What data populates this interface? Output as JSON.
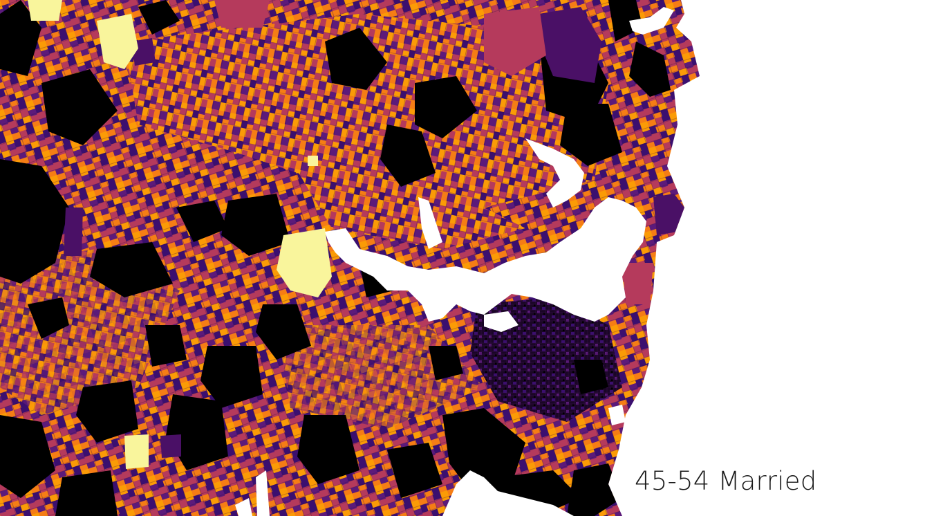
{
  "map": {
    "caption": "45-54 Married",
    "colors": {
      "background": "#ffffff",
      "water": "#ffffff",
      "none": "#000000",
      "low": "#3b0f6f",
      "mid_low": "#5c1a7a",
      "mid": "#b53a5c",
      "mid_high": "#f57d15",
      "high": "#fb9b06",
      "peak": "#fcffa4",
      "tile_border": "#2a0a3a"
    },
    "legend_scale": "inferno"
  }
}
